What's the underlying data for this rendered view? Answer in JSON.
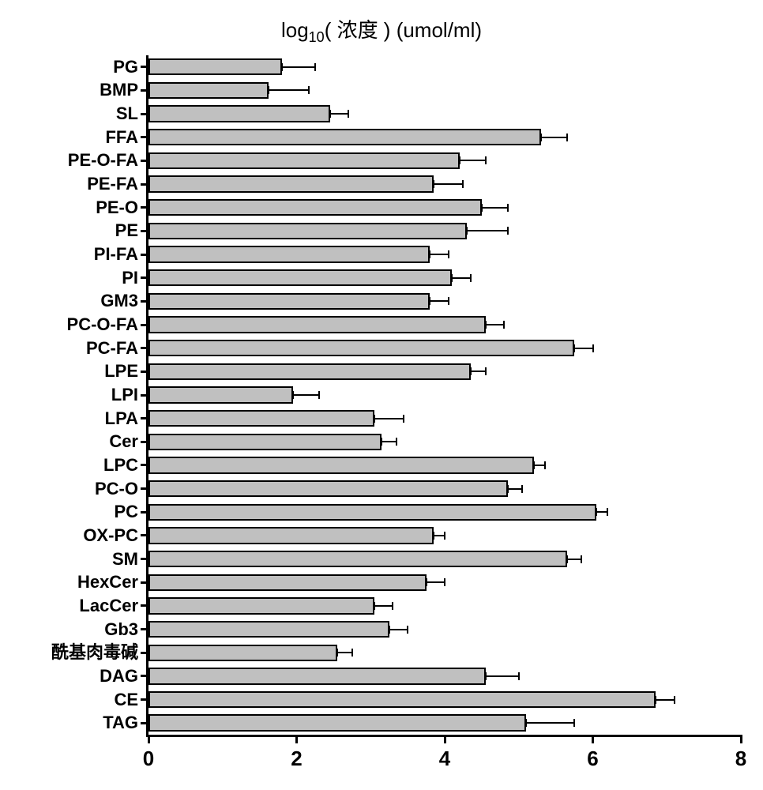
{
  "chart": {
    "type": "bar-horizontal",
    "title_html": "log<sub>10</sub>( 浓度 ) (umol/ml)",
    "title_fontsize": 26,
    "background_color": "#ffffff",
    "bar_fill_color": "#c0c0c0",
    "bar_border_color": "#000000",
    "bar_border_width": 2,
    "axis_color": "#000000",
    "axis_width": 3,
    "error_bar_color": "#000000",
    "error_bar_width": 2,
    "error_cap_height": 10,
    "label_fontsize": 22,
    "label_fontweight": 700,
    "tick_label_fontsize": 26,
    "xlim": [
      0,
      8
    ],
    "xtick_step": 2,
    "bar_rel_height": 0.72,
    "x_ticks": [
      {
        "value": 0,
        "label": "0"
      },
      {
        "value": 2,
        "label": "2"
      },
      {
        "value": 4,
        "label": "4"
      },
      {
        "value": 6,
        "label": "6"
      },
      {
        "value": 8,
        "label": "8"
      }
    ],
    "categories": [
      {
        "label": "PG",
        "value": 1.8,
        "error": 0.45
      },
      {
        "label": "BMP",
        "value": 1.62,
        "error": 0.55
      },
      {
        "label": "SL",
        "value": 2.45,
        "error": 0.25
      },
      {
        "label": "FFA",
        "value": 5.3,
        "error": 0.35
      },
      {
        "label": "PE-O-FA",
        "value": 4.2,
        "error": 0.35
      },
      {
        "label": "PE-FA",
        "value": 3.85,
        "error": 0.4
      },
      {
        "label": "PE-O",
        "value": 4.5,
        "error": 0.35
      },
      {
        "label": "PE",
        "value": 4.3,
        "error": 0.55
      },
      {
        "label": "PI-FA",
        "value": 3.8,
        "error": 0.25
      },
      {
        "label": "PI",
        "value": 4.1,
        "error": 0.25
      },
      {
        "label": "GM3",
        "value": 3.8,
        "error": 0.25
      },
      {
        "label": "PC-O-FA",
        "value": 4.55,
        "error": 0.25
      },
      {
        "label": "PC-FA",
        "value": 5.75,
        "error": 0.25
      },
      {
        "label": "LPE",
        "value": 4.35,
        "error": 0.2
      },
      {
        "label": "LPI",
        "value": 1.95,
        "error": 0.35
      },
      {
        "label": "LPA",
        "value": 3.05,
        "error": 0.4
      },
      {
        "label": "Cer",
        "value": 3.15,
        "error": 0.2
      },
      {
        "label": "LPC",
        "value": 5.2,
        "error": 0.15
      },
      {
        "label": "PC-O",
        "value": 4.85,
        "error": 0.2
      },
      {
        "label": "PC",
        "value": 6.05,
        "error": 0.15
      },
      {
        "label": "OX-PC",
        "value": 3.85,
        "error": 0.15
      },
      {
        "label": "SM",
        "value": 5.65,
        "error": 0.2
      },
      {
        "label": "HexCer",
        "value": 3.75,
        "error": 0.25
      },
      {
        "label": "LacCer",
        "value": 3.05,
        "error": 0.25
      },
      {
        "label": "Gb3",
        "value": 3.25,
        "error": 0.25
      },
      {
        "label": "酰基肉毒碱",
        "value": 2.55,
        "error": 0.2
      },
      {
        "label": "DAG",
        "value": 4.55,
        "error": 0.45
      },
      {
        "label": "CE",
        "value": 6.85,
        "error": 0.25
      },
      {
        "label": "TAG",
        "value": 5.1,
        "error": 0.65
      }
    ]
  }
}
